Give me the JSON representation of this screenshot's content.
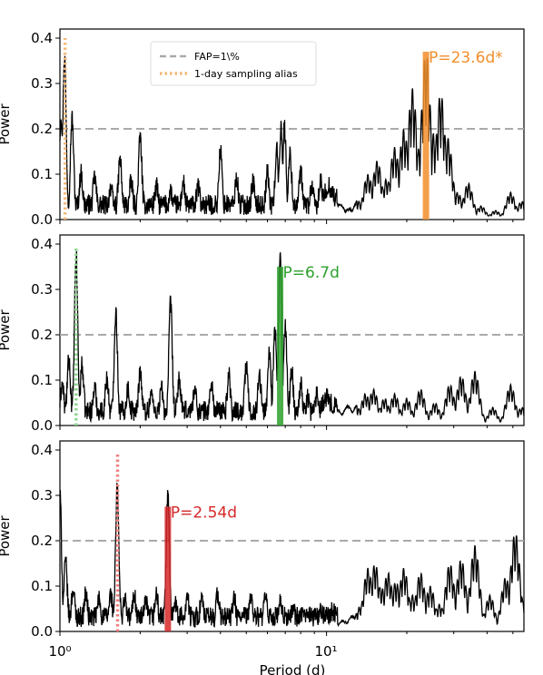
{
  "figure": {
    "shared_xlabel": "Period (d)",
    "xlim": [
      1.0,
      55.0
    ],
    "x_scale": "log",
    "x_tick_labels": [
      {
        "value": 1,
        "label": "10⁰"
      },
      {
        "value": 10,
        "label": "10¹"
      }
    ]
  },
  "legend": {
    "placement": "top-left of top panel",
    "entries": [
      {
        "label": "FAP=1\\%",
        "style": "dashed",
        "color": "#aaaaaa"
      },
      {
        "label": "1-day sampling alias",
        "style": "dotted",
        "color": "#f5b87a"
      }
    ]
  },
  "chart_data": [
    {
      "type": "line",
      "ylabel": "Power",
      "ylim": [
        0.0,
        0.42
      ],
      "y_ticks": [
        0.0,
        0.1,
        0.2,
        0.3,
        0.4
      ],
      "y_tick_labels": [
        "0.0",
        "0.1",
        "0.2",
        "0.3",
        "0.4"
      ],
      "fap_level": 0.2,
      "highlight": {
        "label": "P=23.6d*",
        "period": 23.6,
        "power": 0.37,
        "color": "#f28e2b"
      },
      "alias": {
        "period": 1.045,
        "color": "#f5b87a",
        "top": 0.4
      },
      "series_color": "#000000",
      "peaks": [
        [
          1.01,
          0.21
        ],
        [
          1.04,
          0.34
        ],
        [
          1.11,
          0.2
        ],
        [
          1.2,
          0.08
        ],
        [
          1.35,
          0.07
        ],
        [
          1.55,
          0.05
        ],
        [
          1.68,
          0.11
        ],
        [
          1.85,
          0.06
        ],
        [
          2.0,
          0.16
        ],
        [
          2.3,
          0.05
        ],
        [
          2.6,
          0.04
        ],
        [
          2.9,
          0.06
        ],
        [
          3.3,
          0.05
        ],
        [
          4.0,
          0.13
        ],
        [
          4.6,
          0.07
        ],
        [
          5.3,
          0.06
        ],
        [
          6.0,
          0.08
        ],
        [
          6.5,
          0.13
        ],
        [
          6.75,
          0.18
        ],
        [
          6.95,
          0.18
        ],
        [
          7.3,
          0.12
        ],
        [
          8.0,
          0.08
        ],
        [
          8.8,
          0.05
        ],
        [
          9.5,
          0.06
        ],
        [
          10.2,
          0.05
        ],
        [
          11.2,
          0.03
        ],
        [
          12.2,
          0.02
        ],
        [
          13.2,
          0.04
        ],
        [
          14.3,
          0.1
        ],
        [
          15.5,
          0.13
        ],
        [
          16.8,
          0.09
        ],
        [
          18.0,
          0.16
        ],
        [
          19.5,
          0.2
        ],
        [
          21.0,
          0.29
        ],
        [
          22.5,
          0.17
        ],
        [
          23.6,
          0.37
        ],
        [
          25.2,
          0.19
        ],
        [
          26.8,
          0.28
        ],
        [
          28.5,
          0.18
        ],
        [
          31.0,
          0.06
        ],
        [
          34.0,
          0.08
        ],
        [
          38.0,
          0.03
        ],
        [
          43.0,
          0.02
        ],
        [
          49.0,
          0.06
        ],
        [
          54.0,
          0.04
        ]
      ]
    },
    {
      "type": "line",
      "ylabel": "Power",
      "ylim": [
        0.0,
        0.42
      ],
      "y_ticks": [
        0.0,
        0.1,
        0.2,
        0.3,
        0.4
      ],
      "y_tick_labels": [
        "0.0",
        "0.1",
        "0.2",
        "0.3",
        "0.4"
      ],
      "fap_level": 0.2,
      "highlight": {
        "label": "P=6.7d",
        "period": 6.7,
        "power": 0.35,
        "color": "#2ca02c"
      },
      "alias": {
        "period": 1.15,
        "color": "#8fd48f",
        "top": 0.39
      },
      "series_color": "#000000",
      "peaks": [
        [
          1.02,
          0.07
        ],
        [
          1.08,
          0.12
        ],
        [
          1.15,
          0.35
        ],
        [
          1.21,
          0.11
        ],
        [
          1.35,
          0.06
        ],
        [
          1.5,
          0.08
        ],
        [
          1.62,
          0.23
        ],
        [
          1.8,
          0.06
        ],
        [
          2.0,
          0.1
        ],
        [
          2.2,
          0.05
        ],
        [
          2.4,
          0.06
        ],
        [
          2.6,
          0.25
        ],
        [
          2.8,
          0.08
        ],
        [
          3.2,
          0.06
        ],
        [
          3.7,
          0.07
        ],
        [
          4.3,
          0.09
        ],
        [
          5.0,
          0.11
        ],
        [
          5.6,
          0.09
        ],
        [
          6.1,
          0.14
        ],
        [
          6.4,
          0.19
        ],
        [
          6.7,
          0.35
        ],
        [
          7.0,
          0.19
        ],
        [
          7.4,
          0.1
        ],
        [
          8.0,
          0.07
        ],
        [
          8.5,
          0.04
        ],
        [
          9.2,
          0.05
        ],
        [
          10.0,
          0.04
        ],
        [
          11.0,
          0.03
        ],
        [
          12.0,
          0.04
        ],
        [
          13.0,
          0.04
        ],
        [
          14.0,
          0.07
        ],
        [
          15.0,
          0.08
        ],
        [
          16.5,
          0.06
        ],
        [
          18.0,
          0.07
        ],
        [
          20.0,
          0.06
        ],
        [
          22.5,
          0.08
        ],
        [
          25.5,
          0.05
        ],
        [
          29.0,
          0.09
        ],
        [
          32.0,
          0.11
        ],
        [
          36.0,
          0.12
        ],
        [
          42.0,
          0.04
        ],
        [
          49.0,
          0.09
        ],
        [
          54.0,
          0.04
        ]
      ]
    },
    {
      "type": "line",
      "ylabel": "Power",
      "ylim": [
        0.0,
        0.42
      ],
      "y_ticks": [
        0.0,
        0.1,
        0.2,
        0.3,
        0.4
      ],
      "y_tick_labels": [
        "0.0",
        "0.1",
        "0.2",
        "0.3",
        "0.4"
      ],
      "fap_level": 0.2,
      "highlight": {
        "label": "P=2.54d",
        "period": 2.54,
        "power": 0.275,
        "color": "#d62728"
      },
      "alias": {
        "period": 1.645,
        "color": "#f08080",
        "top": 0.39
      },
      "series_color": "#000000",
      "peaks": [
        [
          1.0,
          0.28
        ],
        [
          1.05,
          0.13
        ],
        [
          1.12,
          0.07
        ],
        [
          1.25,
          0.06
        ],
        [
          1.4,
          0.05
        ],
        [
          1.55,
          0.06
        ],
        [
          1.64,
          0.29
        ],
        [
          1.75,
          0.05
        ],
        [
          1.9,
          0.06
        ],
        [
          2.1,
          0.04
        ],
        [
          2.3,
          0.06
        ],
        [
          2.54,
          0.275
        ],
        [
          2.7,
          0.05
        ],
        [
          3.0,
          0.06
        ],
        [
          3.4,
          0.05
        ],
        [
          3.9,
          0.06
        ],
        [
          4.5,
          0.05
        ],
        [
          5.2,
          0.06
        ],
        [
          5.9,
          0.05
        ],
        [
          6.7,
          0.04
        ],
        [
          7.5,
          0.03
        ],
        [
          8.5,
          0.03
        ],
        [
          9.5,
          0.03
        ],
        [
          10.5,
          0.02
        ],
        [
          11.5,
          0.02
        ],
        [
          12.5,
          0.03
        ],
        [
          13.5,
          0.06
        ],
        [
          14.3,
          0.14
        ],
        [
          15.2,
          0.15
        ],
        [
          16.0,
          0.1
        ],
        [
          17.0,
          0.13
        ],
        [
          18.2,
          0.11
        ],
        [
          19.5,
          0.14
        ],
        [
          21.0,
          0.08
        ],
        [
          22.5,
          0.13
        ],
        [
          24.5,
          0.1
        ],
        [
          26.5,
          0.06
        ],
        [
          29.0,
          0.15
        ],
        [
          32.0,
          0.16
        ],
        [
          36.0,
          0.19
        ],
        [
          41.0,
          0.08
        ],
        [
          47.0,
          0.12
        ],
        [
          51.0,
          0.22
        ],
        [
          55.0,
          0.07
        ]
      ]
    }
  ]
}
